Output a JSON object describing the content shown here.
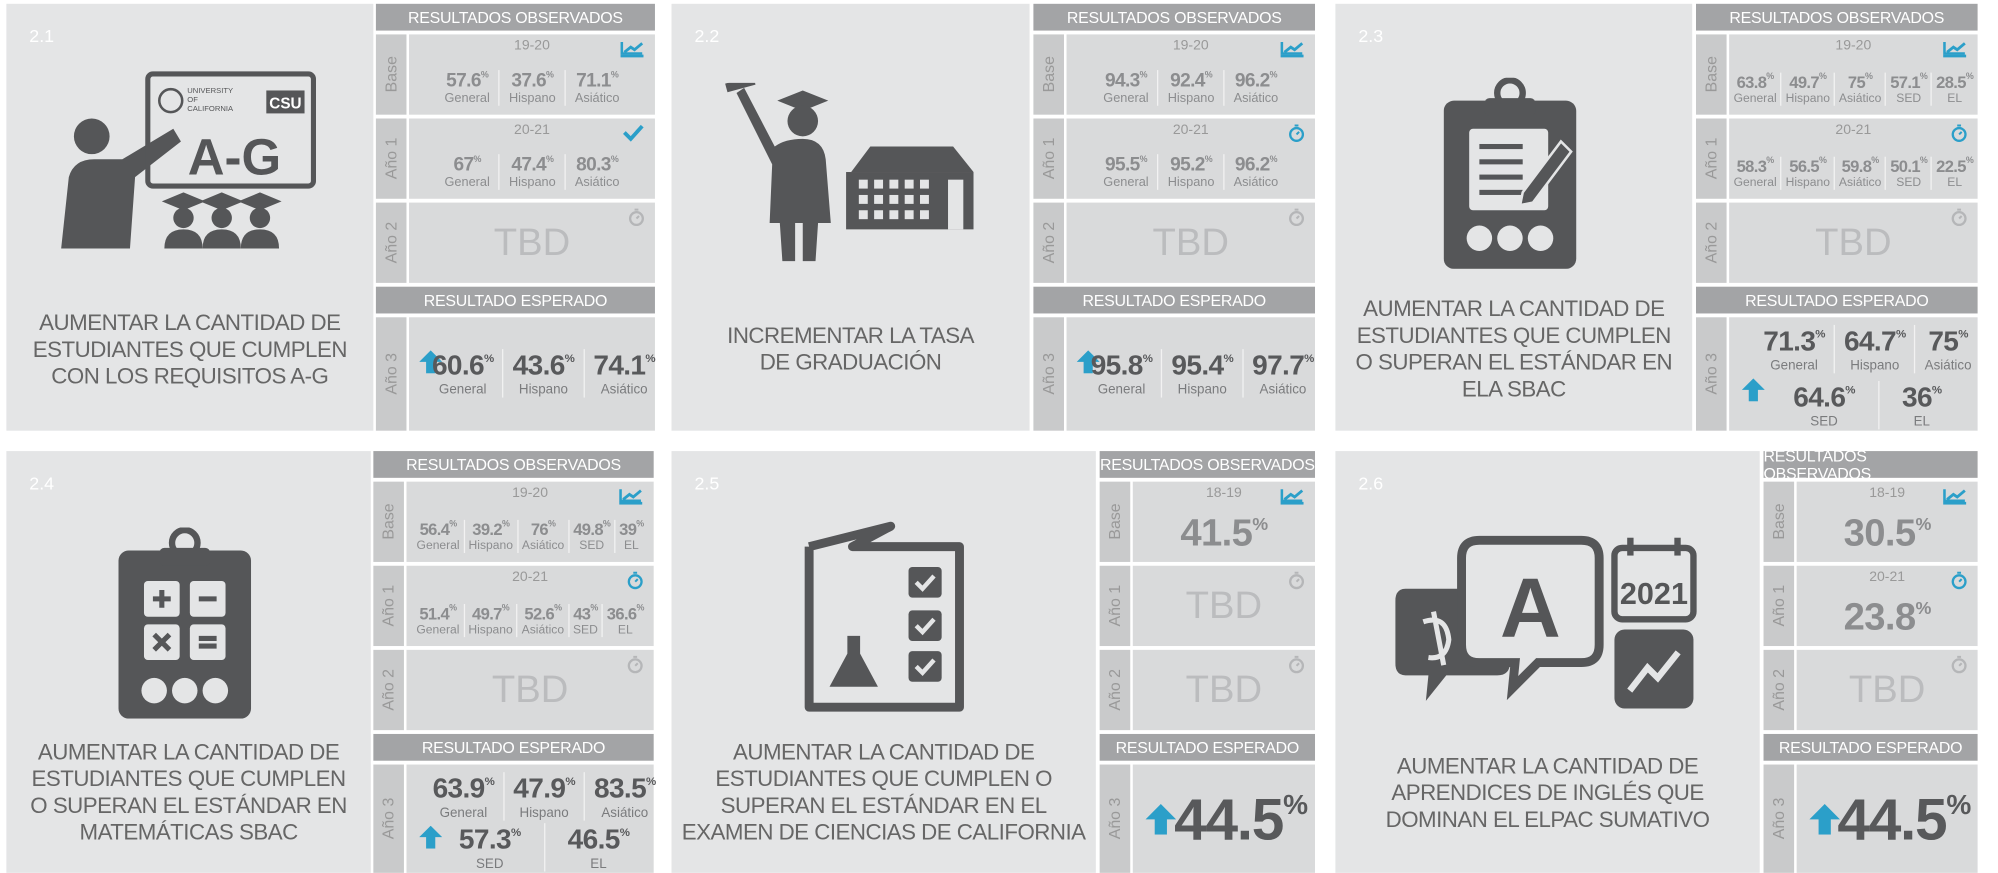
{
  "percent_sign": "%",
  "labels": {
    "observed": "RESULTADOS OBSERVADOS",
    "expected": "RESULTADO ESPERADO"
  },
  "cards": [
    {
      "number": "2.1",
      "goal_lines": [
        "AUMENTAR LA CANTIDAD DE",
        "ESTUDIANTES QUE CUMPLEN",
        "CON LOS REQUISITOS A-G"
      ],
      "icon_texts": [
        "UNIVERSITY",
        "OF",
        "CALIFORNIA",
        "CSU",
        "A-G"
      ],
      "observed": [
        {
          "label": "Base",
          "period": "19-20",
          "status": "download",
          "values": [
            57.6,
            37.6,
            71.1
          ],
          "groups": [
            "General",
            "Hispano",
            "Asiático"
          ]
        },
        {
          "label": "Año 1",
          "period": "20-21",
          "status": "check",
          "values": [
            67,
            47.4,
            80.3
          ],
          "groups": [
            "General",
            "Hispano",
            "Asiático"
          ]
        },
        {
          "label": "Año 2",
          "status": "pending",
          "text": "TBD"
        }
      ],
      "expected": {
        "label": "Año 3",
        "values": [
          60.6,
          43.6,
          74.1
        ],
        "groups": [
          "General",
          "Hispano",
          "Asiático"
        ]
      }
    },
    {
      "number": "2.2",
      "goal_lines": [
        "INCREMENTAR LA TASA",
        "DE GRADUACIÓN"
      ],
      "observed": [
        {
          "label": "Base",
          "period": "19-20",
          "status": "download",
          "values": [
            94.3,
            92.4,
            96.2
          ],
          "groups": [
            "General",
            "Hispano",
            "Asiático"
          ]
        },
        {
          "label": "Año 1",
          "period": "20-21",
          "status": "timer",
          "values": [
            95.5,
            95.2,
            96.2
          ],
          "groups": [
            "General",
            "Hispano",
            "Asiático"
          ]
        },
        {
          "label": "Año 2",
          "status": "pending",
          "text": "TBD"
        }
      ],
      "expected": {
        "label": "Año 3",
        "values": [
          95.8,
          95.4,
          97.7
        ],
        "groups": [
          "General",
          "Hispano",
          "Asiático"
        ]
      }
    },
    {
      "number": "2.3",
      "goal_lines": [
        "AUMENTAR LA CANTIDAD DE",
        "ESTUDIANTES QUE CUMPLEN",
        "O SUPERAN EL ESTÁNDAR EN",
        "ELA SBAC"
      ],
      "observed": [
        {
          "label": "Base",
          "period": "19-20",
          "status": "download",
          "values": [
            63.8,
            49.7,
            75,
            57.1,
            28.5
          ],
          "groups": [
            "General",
            "Hispano",
            "Asiático",
            "SED",
            "EL"
          ]
        },
        {
          "label": "Año 1",
          "period": "20-21",
          "status": "timer",
          "values": [
            58.3,
            56.5,
            59.8,
            50.1,
            22.5
          ],
          "groups": [
            "General",
            "Hispano",
            "Asiático",
            "SED",
            "EL"
          ]
        },
        {
          "label": "Año 2",
          "status": "pending",
          "text": "TBD"
        }
      ],
      "expected": {
        "label": "Año 3",
        "values": [
          71.3,
          64.7,
          75,
          64.6,
          36
        ],
        "groups": [
          "General",
          "Hispano",
          "Asiático",
          "SED",
          "EL"
        ]
      }
    },
    {
      "number": "2.4",
      "goal_lines": [
        "AUMENTAR LA CANTIDAD DE",
        "ESTUDIANTES QUE CUMPLEN",
        "O SUPERAN EL ESTÁNDAR EN",
        "MATEMÁTICAS SBAC"
      ],
      "observed": [
        {
          "label": "Base",
          "period": "19-20",
          "status": "download",
          "values": [
            56.4,
            39.2,
            76,
            49.8,
            39
          ],
          "groups": [
            "General",
            "Hispano",
            "Asiático",
            "SED",
            "EL"
          ]
        },
        {
          "label": "Año 1",
          "period": "20-21",
          "status": "timer",
          "values": [
            51.4,
            49.7,
            52.6,
            43,
            36.6
          ],
          "groups": [
            "General",
            "Hispano",
            "Asiático",
            "SED",
            "EL"
          ]
        },
        {
          "label": "Año 2",
          "status": "pending",
          "text": "TBD"
        }
      ],
      "expected": {
        "label": "Año 3",
        "values": [
          63.9,
          47.9,
          83.5,
          57.3,
          46.5
        ],
        "groups": [
          "General",
          "Hispano",
          "Asiático",
          "SED",
          "EL"
        ]
      }
    },
    {
      "number": "2.5",
      "goal_lines": [
        "AUMENTAR LA CANTIDAD DE",
        "ESTUDIANTES QUE CUMPLEN O",
        "SUPERAN EL ESTÁNDAR EN EL",
        "EXAMEN DE CIENCIAS DE CALIFORNIA"
      ],
      "observed": [
        {
          "label": "Base",
          "period": "18-19",
          "status": "download",
          "values": [
            41.5
          ]
        },
        {
          "label": "Año 1",
          "status": "pending",
          "text": "TBD"
        },
        {
          "label": "Año 2",
          "status": "pending",
          "text": "TBD"
        }
      ],
      "expected": {
        "label": "Año 3",
        "values": [
          44.5
        ]
      }
    },
    {
      "number": "2.6",
      "goal_lines": [
        "AUMENTAR LA CANTIDAD DE",
        "APRENDICES DE INGLÉS QUE",
        "DOMINAN EL ELPAC SUMATIVO"
      ],
      "icon_texts": [
        "A",
        "2021"
      ],
      "observed": [
        {
          "label": "Base",
          "period": "18-19",
          "status": "download",
          "values": [
            30.5
          ]
        },
        {
          "label": "Año 1",
          "period": "20-21",
          "status": "timer",
          "values": [
            23.8
          ]
        },
        {
          "label": "Año 2",
          "status": "pending",
          "text": "TBD"
        }
      ],
      "expected": {
        "label": "Año 3",
        "values": [
          44.5
        ]
      }
    }
  ]
}
